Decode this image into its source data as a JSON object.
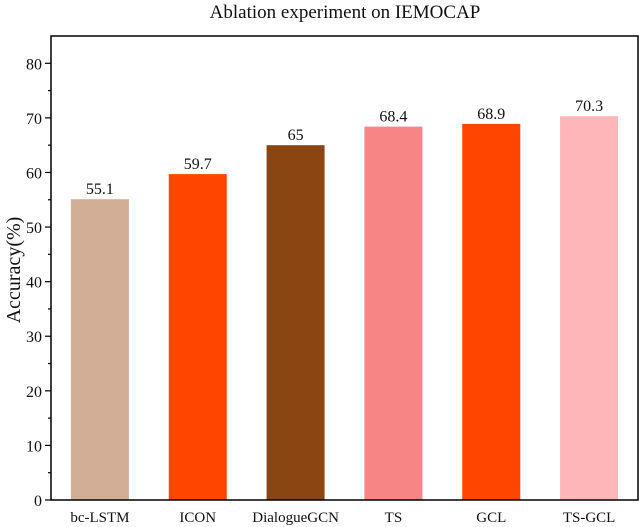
{
  "chart_data": {
    "type": "bar",
    "title": "Ablation experiment on IEMOCAP",
    "xlabel": "",
    "ylabel": "Accuracy(%)",
    "ylim": [
      0,
      85
    ],
    "yticks": [
      0,
      10,
      20,
      30,
      40,
      50,
      60,
      70,
      80
    ],
    "grid": false,
    "categories": [
      "bc-LSTM",
      "ICON",
      "DialogueGCN",
      "TS",
      "GCL",
      "TS-GCL"
    ],
    "values": [
      55.1,
      59.7,
      65,
      68.4,
      68.9,
      70.3
    ],
    "data_labels": [
      "55.1",
      "59.7",
      "65",
      "68.4",
      "68.9",
      "70.3"
    ],
    "colors": [
      "#d2ae96",
      "#ff4500",
      "#8b4513",
      "#f88585",
      "#ff4500",
      "#ffb6b9"
    ]
  }
}
